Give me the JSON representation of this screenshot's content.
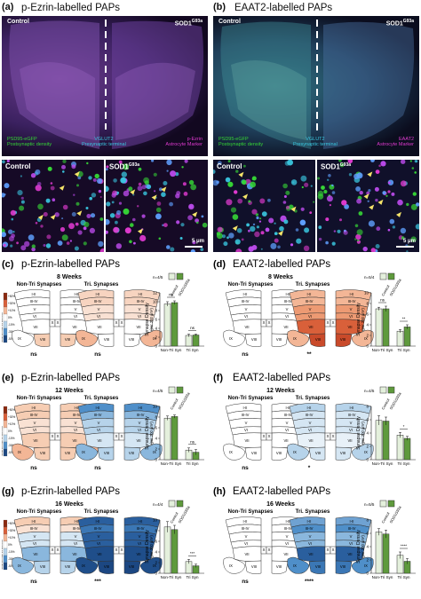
{
  "panel_a": {
    "label": "(a)",
    "title": "p-Ezrin-labelled PAPs",
    "control": "Control",
    "sod1": "SOD1",
    "sod1_sup": "G93a",
    "legend": [
      {
        "name": "PSD95-eGFP",
        "desc": "Postsynaptic density",
        "color": "#36d636"
      },
      {
        "name": "VGLUT2",
        "desc": "Presynaptic terminal",
        "color": "#3ac7e0"
      },
      {
        "name": "p-Ezrin",
        "desc": "Astrocyte Marker",
        "color": "#e03ad0"
      }
    ],
    "zoom_control": "Control",
    "zoom_sod1": "SOD1",
    "zoom_sod1_sup": "G93a"
  },
  "panel_b": {
    "label": "(b)",
    "title": "EAAT2-labelled PAPs",
    "control": "Control",
    "sod1": "SOD1",
    "sod1_sup": "G93a",
    "legend": [
      {
        "name": "PSD95-eGFP",
        "desc": "Postsynaptic density",
        "color": "#36d636"
      },
      {
        "name": "VGLUT2",
        "desc": "Presynaptic terminal",
        "color": "#3ac7e0"
      },
      {
        "name": "EAAT2",
        "desc": "Astrocyte Marker",
        "color": "#e03ad0"
      }
    ],
    "zoom_control": "Control",
    "zoom_sod1": "SOD1",
    "zoom_sod1_sup": "G93a",
    "scale": "5 μm"
  },
  "scale_a": "5 μm",
  "colorbar_label": "SOD1G93a vs Control",
  "colorbar_ticks": [
    "+50%",
    "+30%",
    "+10%",
    "0%",
    "-10%",
    "-30%",
    "-50%"
  ],
  "map_sub_left": "Non-Tri Synapses",
  "map_sub_right": "Tri. Synapses",
  "bar_ylabel": "Synapse Density",
  "bar_yunit": "(per 200 μm²)",
  "bar_x": [
    "Non-Tri Syn",
    "Tri Syn"
  ],
  "legend_control": "Control",
  "legend_sod1": "SOD1G93a",
  "chart_data": [
    {
      "id": "c",
      "label": "(c)",
      "title": "p-Ezrin-labelled PAPs",
      "week": "8 Weeks",
      "type": "bar",
      "n": "n=4/5",
      "control": [
        9.5,
        2.4
      ],
      "sod1": [
        9.8,
        2.5
      ],
      "err_c": [
        0.5,
        0.3
      ],
      "err_s": [
        0.4,
        0.2
      ],
      "ylim": [
        0,
        12
      ],
      "yticks": [
        0,
        2,
        4,
        6,
        8,
        10,
        12
      ],
      "sig": [
        "ns",
        "ns"
      ],
      "left_sig": "ns",
      "right_sig": "ns",
      "left_regions": {
        "I-II": "#ffffff",
        "III-IV": "#ffffff",
        "V": "#ffffff",
        "VI": "#ffffff",
        "VII": "#ffffff",
        "VIII": "#f6cdb3",
        "IX": "#ffffff",
        "X": "#ffffff"
      },
      "right_regions": {
        "I-II": "#f7d4c0",
        "III-IV": "#f7d4c0",
        "V": "#f9e1d3",
        "VI": "#f9e1d3",
        "VII": "#ffffff",
        "VIII": "#ffffff",
        "IX": "#f3b696",
        "X": "#ffffff"
      }
    },
    {
      "id": "d",
      "label": "(d)",
      "title": "EAAT2-labelled PAPs",
      "week": "8 Weeks",
      "type": "bar",
      "n": "n=5/4",
      "control": [
        7.0,
        2.8
      ],
      "sod1": [
        7.0,
        3.6
      ],
      "err_c": [
        0.3,
        0.3
      ],
      "err_s": [
        0.5,
        0.4
      ],
      "ylim": [
        0,
        10
      ],
      "yticks": [
        0,
        2,
        4,
        6,
        8,
        10
      ],
      "sig": [
        "ns",
        "**"
      ],
      "left_sig": "ns",
      "right_sig": "**",
      "left_regions": {
        "I-II": "#ffffff",
        "III-IV": "#ffffff",
        "V": "#ffffff",
        "VI": "#ffffff",
        "VII": "#ffffff",
        "VIII": "#ffffff",
        "IX": "#ffffff",
        "X": "#ffffff"
      },
      "right_regions": {
        "I-II": "#f3b696",
        "III-IV": "#f3b696",
        "V": "#ed9a73",
        "VI": "#ed9a73",
        "VII": "#d9603a",
        "VIII": "#c94a2a",
        "IX": "#f3b696",
        "X": "#ffffff"
      }
    },
    {
      "id": "e",
      "label": "(e)",
      "title": "p-Ezrin-labelled PAPs",
      "week": "12 Weeks",
      "type": "bar",
      "n": "n=4/5",
      "control": [
        7.8,
        1.8
      ],
      "sod1": [
        8.1,
        1.4
      ],
      "err_c": [
        0.4,
        0.4
      ],
      "err_s": [
        0.3,
        0.5
      ],
      "ylim": [
        0,
        10
      ],
      "yticks": [
        0,
        2,
        4,
        6,
        8,
        10
      ],
      "sig": [
        "",
        "ns"
      ],
      "left_sig": "ns",
      "right_sig": "ns",
      "left_regions": {
        "I-II": "#f6cdb3",
        "III-IV": "#f6cdb3",
        "V": "#f9e1d3",
        "VI": "#f9e1d3",
        "VII": "#f6cdb3",
        "VIII": "#f6cdb3",
        "IX": "#f3b696",
        "X": "#ffffff"
      },
      "right_regions": {
        "I-II": "#4f8fc9",
        "III-IV": "#8ab7dd",
        "V": "#b6d3ea",
        "VI": "#b6d3ea",
        "VII": "#d5e6f3",
        "VIII": "#b6d3ea",
        "IX": "#8ab7dd",
        "X": "#ffffff"
      }
    },
    {
      "id": "f",
      "label": "(f)",
      "title": "EAAT2-labelled PAPs",
      "week": "12 Weeks",
      "type": "bar",
      "n": "n=4/5",
      "control": [
        5.9,
        3.7
      ],
      "sod1": [
        5.8,
        3.2
      ],
      "err_c": [
        0.7,
        0.4
      ],
      "err_s": [
        0.6,
        0.3
      ],
      "ylim": [
        0,
        8
      ],
      "yticks": [
        0,
        2,
        4,
        6,
        8
      ],
      "sig": [
        "",
        "*"
      ],
      "left_sig": "ns",
      "right_sig": "*",
      "left_regions": {
        "I-II": "#ffffff",
        "III-IV": "#ffffff",
        "V": "#ffffff",
        "VI": "#ffffff",
        "VII": "#ffffff",
        "VIII": "#ffffff",
        "IX": "#ffffff",
        "X": "#ffffff"
      },
      "right_regions": {
        "I-II": "#b6d3ea",
        "III-IV": "#d5e6f3",
        "V": "#d5e6f3",
        "VI": "#d5e6f3",
        "VII": "#e8f1f8",
        "VIII": "#d5e6f3",
        "IX": "#b6d3ea",
        "X": "#ffffff"
      }
    },
    {
      "id": "g",
      "label": "(g)",
      "title": "p-Ezrin-labelled PAPs",
      "week": "16 Weeks",
      "type": "bar",
      "n": "n=4/4",
      "control": [
        8.7,
        2.2
      ],
      "sod1": [
        8.2,
        1.4
      ],
      "err_c": [
        1.0,
        0.4
      ],
      "err_s": [
        0.8,
        0.3
      ],
      "ylim": [
        0,
        10
      ],
      "yticks": [
        0,
        2,
        4,
        6,
        8,
        10
      ],
      "sig": [
        "",
        "***"
      ],
      "left_sig": "ns",
      "right_sig": "***",
      "left_regions": {
        "I-II": "#f6cdb3",
        "III-IV": "#f9e1d3",
        "V": "#d5e6f3",
        "VI": "#d5e6f3",
        "VII": "#8ab7dd",
        "VIII": "#b6d3ea",
        "IX": "#8ab7dd",
        "X": "#ffffff"
      },
      "right_regions": {
        "I-II": "#2a5f9e",
        "III-IV": "#3b77b5",
        "V": "#2a5f9e",
        "VI": "#2a5f9e",
        "VII": "#1f4e8a",
        "VIII": "#1c4782",
        "IX": "#1f4e8a",
        "X": "#ffffff"
      }
    },
    {
      "id": "h",
      "label": "(h)",
      "title": "EAAT2-labelled PAPs",
      "week": "16 Weeks",
      "type": "bar",
      "n": "n=5/5",
      "control": [
        6.2,
        2.7
      ],
      "sod1": [
        5.9,
        1.8
      ],
      "err_c": [
        0.5,
        0.5
      ],
      "err_s": [
        0.6,
        0.4
      ],
      "ylim": [
        0,
        8
      ],
      "yticks": [
        0,
        2,
        4,
        6,
        8
      ],
      "sig": [
        "",
        "****"
      ],
      "left_sig": "ns",
      "right_sig": "****",
      "left_regions": {
        "I-II": "#ffffff",
        "III-IV": "#ffffff",
        "V": "#ffffff",
        "VI": "#ffffff",
        "VII": "#ffffff",
        "VIII": "#ffffff",
        "IX": "#ffffff",
        "X": "#ffffff"
      },
      "right_regions": {
        "I-II": "#6fa2d2",
        "III-IV": "#4f8fc9",
        "V": "#8ab7dd",
        "VI": "#8ab7dd",
        "VII": "#2a5f9e",
        "VIII": "#3b77b5",
        "IX": "#4f8fc9",
        "X": "#ffffff"
      }
    }
  ]
}
